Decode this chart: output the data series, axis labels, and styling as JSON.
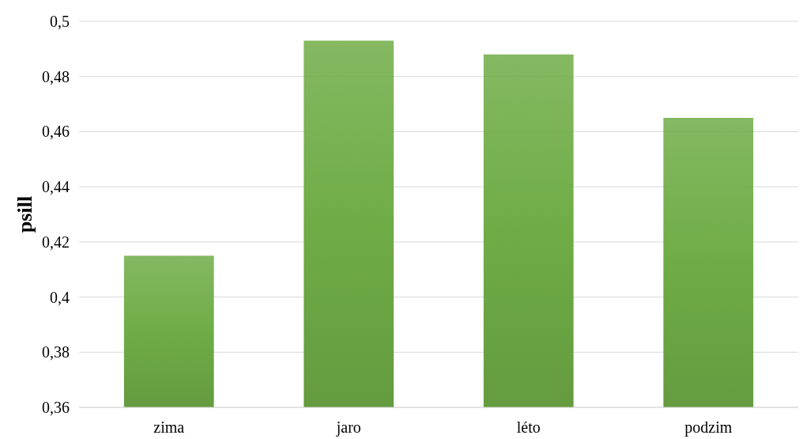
{
  "chart_data": {
    "type": "bar",
    "ylabel": "psill",
    "categories": [
      "zima",
      "jaro",
      "léto",
      "podzim"
    ],
    "values": [
      0.415,
      0.493,
      0.488,
      0.465
    ],
    "color": "#6fac46",
    "ylim": [
      0.36,
      0.5
    ],
    "yticks": [
      {
        "value": 0.36,
        "label": "0,36"
      },
      {
        "value": 0.38,
        "label": "0,38"
      },
      {
        "value": 0.4,
        "label": "0,4"
      },
      {
        "value": 0.42,
        "label": "0,42"
      },
      {
        "value": 0.44,
        "label": "0,44"
      },
      {
        "value": 0.46,
        "label": "0,46"
      },
      {
        "value": 0.48,
        "label": "0,48"
      },
      {
        "value": 0.5,
        "label": "0,5"
      }
    ],
    "grid": true
  }
}
